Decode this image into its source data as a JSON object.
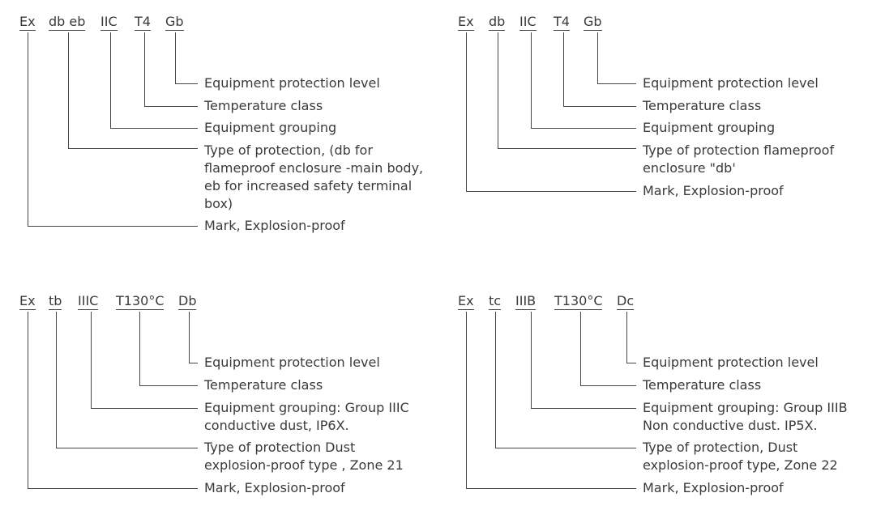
{
  "diagrams": [
    {
      "tokens": [
        "Ex",
        "db eb",
        "IIC",
        "T4",
        "Gb"
      ],
      "labels": [
        {
          "lines": [
            "Equipment protection level"
          ]
        },
        {
          "lines": [
            "Temperature class"
          ]
        },
        {
          "lines": [
            "Equipment grouping"
          ]
        },
        {
          "lines": [
            "Type of protection, (db for",
            "flameproof enclosure -main body,",
            "eb for increased safety terminal",
            "box)"
          ]
        },
        {
          "lines": [
            "Mark, Explosion-proof"
          ]
        }
      ]
    },
    {
      "tokens": [
        "Ex",
        "db",
        "IIC",
        "T4",
        "Gb"
      ],
      "labels": [
        {
          "lines": [
            "Equipment protection level"
          ]
        },
        {
          "lines": [
            "Temperature class"
          ]
        },
        {
          "lines": [
            "Equipment grouping"
          ]
        },
        {
          "lines": [
            "Type of protection flameproof",
            "enclosure \"db'"
          ]
        },
        {
          "lines": [
            "Mark, Explosion-proof"
          ]
        }
      ]
    },
    {
      "tokens": [
        "Ex",
        "tb",
        "IIIC",
        "T130°C",
        "Db"
      ],
      "labels": [
        {
          "lines": [
            "Equipment protection level"
          ]
        },
        {
          "lines": [
            "Temperature class"
          ]
        },
        {
          "lines": [
            "Equipment grouping: Group IIIC",
            "conductive dust, IP6X."
          ]
        },
        {
          "lines": [
            "Type of protection Dust",
            "explosion-proof type , Zone 21"
          ]
        },
        {
          "lines": [
            "Mark, Explosion-proof"
          ]
        }
      ]
    },
    {
      "tokens": [
        "Ex",
        "tc",
        "IIIB",
        "T130°C",
        "Dc"
      ],
      "labels": [
        {
          "lines": [
            "Equipment protection level"
          ]
        },
        {
          "lines": [
            "Temperature class"
          ]
        },
        {
          "lines": [
            "Equipment grouping: Group IIIB",
            "Non conductive dust. IP5X."
          ]
        },
        {
          "lines": [
            "Type of protection, Dust",
            "explosion-proof type, Zone 22"
          ]
        },
        {
          "lines": [
            "Mark, Explosion-proof"
          ]
        }
      ]
    }
  ]
}
